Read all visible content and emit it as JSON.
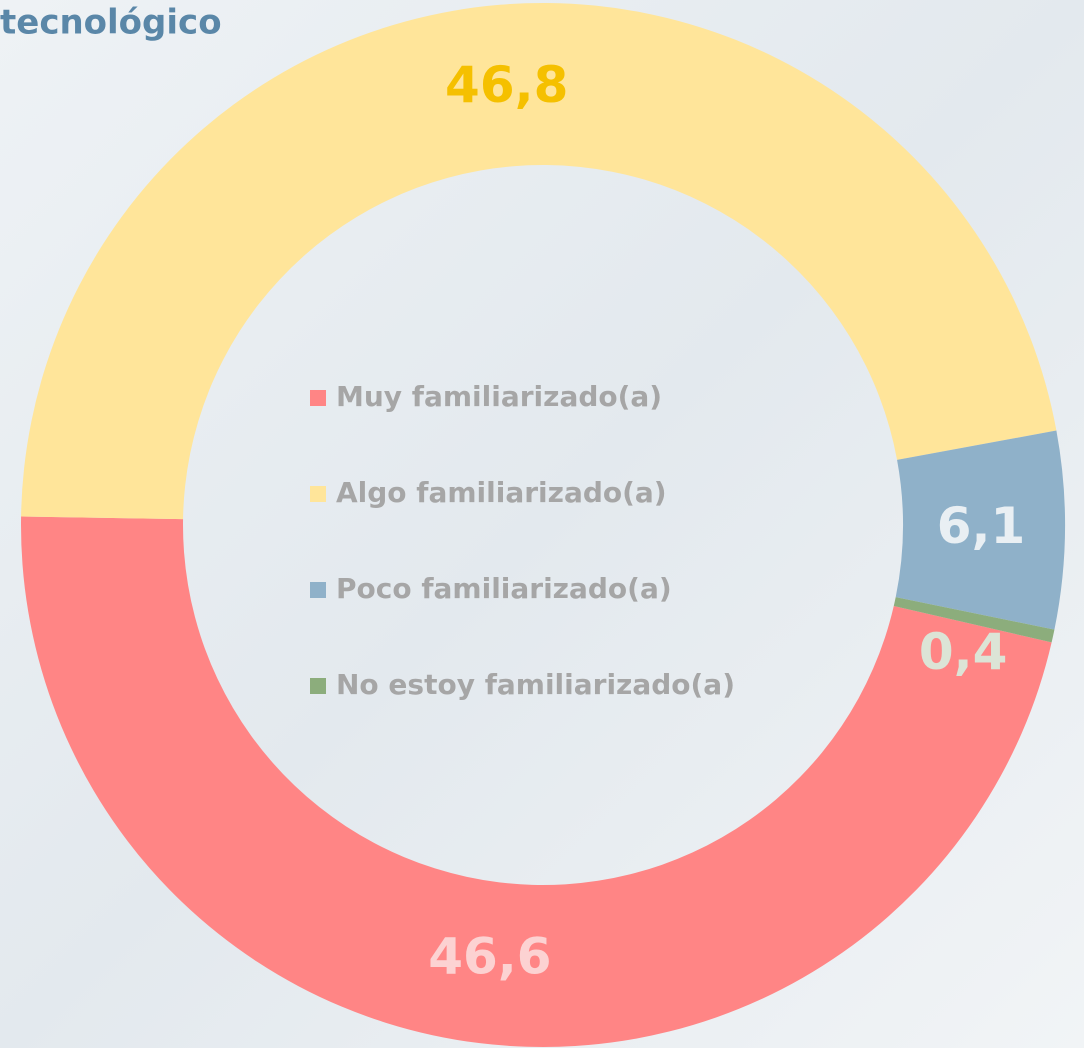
{
  "chart_data": {
    "type": "donut",
    "title": "tecnológico",
    "categories": [
      "Muy familiarizado(a)",
      "Algo familiarizado(a)",
      "Poco familiarizado(a)",
      "No estoy familiarizado(a)"
    ],
    "values": [
      46.6,
      46.8,
      6.1,
      0.4
    ],
    "value_labels": [
      "46,6",
      "46,8",
      "6,1",
      "0,4"
    ],
    "colors": [
      "#ff8585",
      "#ffe59a",
      "#8fb1c9",
      "#8cad7c"
    ],
    "label_colors": [
      "#fcd2d2",
      "#f5c000",
      "#e9eff3",
      "#dce4d6"
    ],
    "legend": "center"
  }
}
